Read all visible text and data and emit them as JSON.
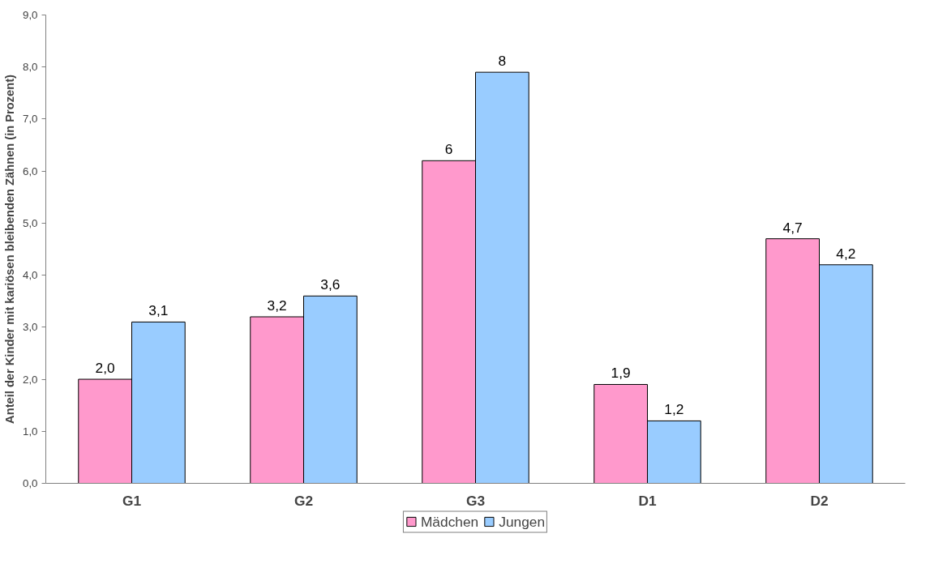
{
  "chart_data": {
    "type": "bar",
    "ylabel": "Anteil der Kinder mit kariösen bleibenden Zähnen (in Prozent)",
    "categories": [
      "G1",
      "G2",
      "G3",
      "D1",
      "D2"
    ],
    "series": [
      {
        "name": "Mädchen",
        "color": "#ff99cc",
        "values": [
          2.0,
          3.2,
          6.2,
          1.9,
          4.7
        ],
        "value_labels": [
          "2,0",
          "3,2",
          "6",
          "1,9",
          "4,7"
        ]
      },
      {
        "name": "Jungen",
        "color": "#99ccff",
        "values": [
          3.1,
          3.6,
          7.9,
          1.2,
          4.2
        ],
        "value_labels": [
          "3,1",
          "3,6",
          "8",
          "1,2",
          "4,2"
        ]
      }
    ],
    "ylim": [
      0,
      9
    ],
    "yticks": [
      {
        "value": 0,
        "label": "0,0"
      },
      {
        "value": 1,
        "label": "1,0"
      },
      {
        "value": 2,
        "label": "2,0"
      },
      {
        "value": 3,
        "label": "3,0"
      },
      {
        "value": 4,
        "label": "4,0"
      },
      {
        "value": 5,
        "label": "5,0"
      },
      {
        "value": 6,
        "label": "6,0"
      },
      {
        "value": 7,
        "label": "7,0"
      },
      {
        "value": 8,
        "label": "8,0"
      },
      {
        "value": 9,
        "label": "9,0"
      }
    ],
    "grid": false,
    "legend": "bottom"
  }
}
